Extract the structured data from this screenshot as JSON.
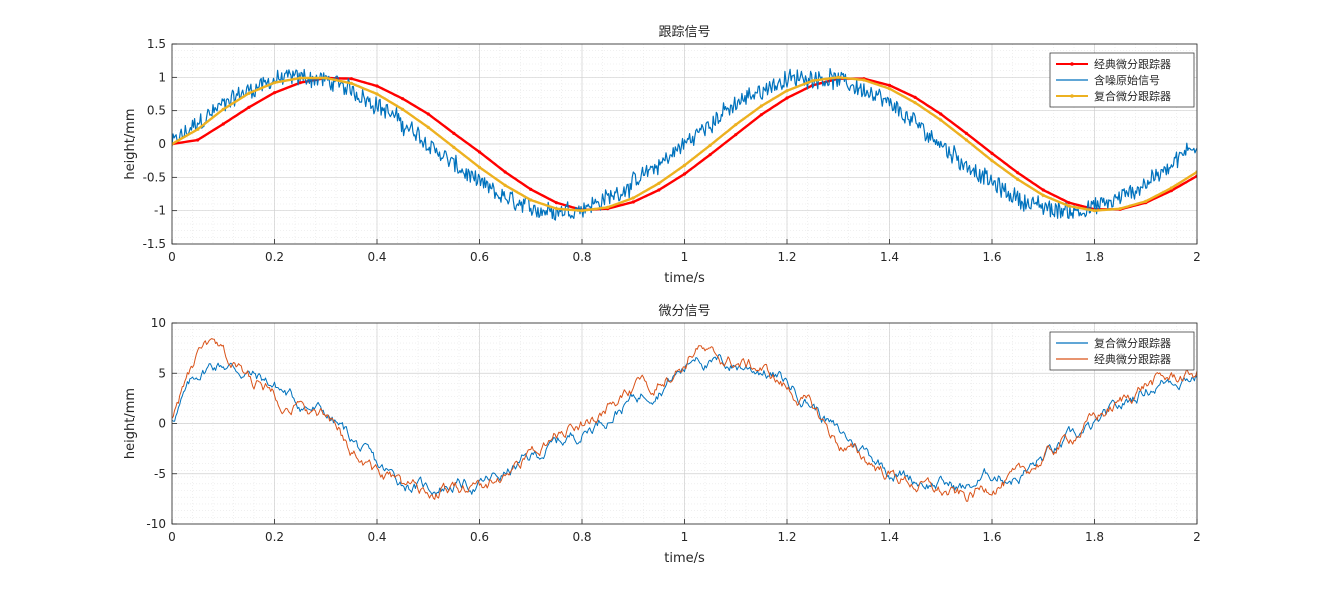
{
  "chart_data": [
    {
      "type": "line",
      "title": "跟踪信号",
      "xlabel": "time/s",
      "ylabel": "height/mm",
      "xlim": [
        0,
        2
      ],
      "ylim": [
        -1.5,
        1.5
      ],
      "xticks": [
        "0",
        "0.2",
        "0.4",
        "0.6",
        "0.8",
        "1",
        "1.2",
        "1.4",
        "1.6",
        "1.8",
        "2"
      ],
      "yticks": [
        "1.5",
        "1",
        "0.5",
        "0",
        "-0.5",
        "-1",
        "-1.5"
      ],
      "grid": "on (major and minor, dotted)",
      "legend_position": "top-right",
      "series": [
        {
          "name": "经典微分跟踪器",
          "color": "#ff0000",
          "marker": "dot",
          "x": [
            0,
            0.05,
            0.1,
            0.15,
            0.2,
            0.25,
            0.3,
            0.35,
            0.4,
            0.45,
            0.5,
            0.55,
            0.6,
            0.65,
            0.7,
            0.75,
            0.8,
            0.85,
            0.9,
            0.95,
            1.0,
            1.05,
            1.1,
            1.15,
            1.2,
            1.25,
            1.3,
            1.35,
            1.4,
            1.45,
            1.5,
            1.55,
            1.6,
            1.65,
            1.7,
            1.75,
            1.8,
            1.85,
            1.9,
            1.95,
            2.0
          ],
          "y": [
            0.0,
            0.06,
            0.3,
            0.55,
            0.77,
            0.92,
            0.99,
            0.98,
            0.87,
            0.68,
            0.45,
            0.16,
            -0.12,
            -0.42,
            -0.68,
            -0.88,
            -0.99,
            -0.97,
            -0.87,
            -0.69,
            -0.45,
            -0.16,
            0.14,
            0.44,
            0.69,
            0.88,
            0.98,
            0.98,
            0.88,
            0.7,
            0.45,
            0.16,
            -0.14,
            -0.43,
            -0.69,
            -0.88,
            -0.98,
            -0.98,
            -0.88,
            -0.7,
            -0.48
          ]
        },
        {
          "name": "含噪原始信号",
          "color": "#0072bd",
          "marker": "none",
          "function": "sin(2*pi*t) + noise",
          "noise_amplitude": 0.1,
          "samples": 1000,
          "x_range": [
            0,
            2
          ]
        },
        {
          "name": "复合微分跟踪器",
          "color": "#edb120",
          "marker": "dot",
          "x": [
            0,
            0.05,
            0.1,
            0.15,
            0.2,
            0.25,
            0.3,
            0.35,
            0.4,
            0.45,
            0.5,
            0.55,
            0.6,
            0.65,
            0.7,
            0.75,
            0.8,
            0.85,
            0.9,
            0.95,
            1.0,
            1.05,
            1.1,
            1.15,
            1.2,
            1.25,
            1.3,
            1.35,
            1.4,
            1.45,
            1.5,
            1.55,
            1.6,
            1.65,
            1.7,
            1.75,
            1.8,
            1.85,
            1.9,
            1.95,
            2.0
          ],
          "y": [
            0.0,
            0.22,
            0.52,
            0.76,
            0.92,
            0.99,
            0.99,
            0.91,
            0.75,
            0.52,
            0.25,
            -0.05,
            -0.35,
            -0.62,
            -0.84,
            -0.97,
            -1.0,
            -0.95,
            -0.81,
            -0.59,
            -0.32,
            -0.02,
            0.29,
            0.57,
            0.8,
            0.95,
            1.0,
            0.96,
            0.83,
            0.62,
            0.36,
            0.06,
            -0.25,
            -0.53,
            -0.77,
            -0.93,
            -1.0,
            -0.97,
            -0.86,
            -0.66,
            -0.42
          ]
        }
      ]
    },
    {
      "type": "line",
      "title": "微分信号",
      "xlabel": "time/s",
      "ylabel": "height/mm",
      "xlim": [
        0,
        2
      ],
      "ylim": [
        -10,
        10
      ],
      "xticks": [
        "0",
        "0.2",
        "0.4",
        "0.6",
        "0.8",
        "1",
        "1.2",
        "1.4",
        "1.6",
        "1.8",
        "2"
      ],
      "yticks": [
        "10",
        "5",
        "0",
        "-5",
        "-10"
      ],
      "grid": "on (major and minor, dotted)",
      "legend_position": "top-right",
      "series": [
        {
          "name": "复合微分跟踪器",
          "color": "#0072bd",
          "x": [
            0,
            0.025,
            0.05,
            0.075,
            0.1,
            0.125,
            0.15,
            0.2,
            0.25,
            0.3,
            0.35,
            0.4,
            0.45,
            0.5,
            0.55,
            0.6,
            0.65,
            0.7,
            0.75,
            0.8,
            0.85,
            0.9,
            0.95,
            1.0,
            1.025,
            1.05,
            1.1,
            1.15,
            1.2,
            1.25,
            1.3,
            1.35,
            1.4,
            1.45,
            1.5,
            1.55,
            1.6,
            1.65,
            1.7,
            1.75,
            1.8,
            1.85,
            1.9,
            1.95,
            2.0
          ],
          "y": [
            0.5,
            2.8,
            4.8,
            5.8,
            6.0,
            5.5,
            5.0,
            3.8,
            2.0,
            1.0,
            -1.5,
            -4.5,
            -5.8,
            -6.5,
            -6.0,
            -6.2,
            -5.0,
            -3.5,
            -2.0,
            -0.8,
            0.8,
            2.5,
            3.8,
            5.5,
            7.2,
            6.0,
            5.8,
            5.5,
            4.0,
            2.0,
            -1.0,
            -2.5,
            -4.5,
            -5.5,
            -6.0,
            -6.5,
            -5.0,
            -5.3,
            -3.5,
            -1.8,
            -0.5,
            1.5,
            3.5,
            4.5,
            5.0
          ]
        },
        {
          "name": "经典微分跟踪器",
          "color": "#d95319",
          "x": [
            0,
            0.025,
            0.05,
            0.075,
            0.1,
            0.125,
            0.15,
            0.2,
            0.25,
            0.3,
            0.35,
            0.4,
            0.45,
            0.5,
            0.55,
            0.6,
            0.65,
            0.7,
            0.75,
            0.8,
            0.85,
            0.9,
            0.95,
            1.0,
            1.025,
            1.05,
            1.1,
            1.15,
            1.2,
            1.25,
            1.3,
            1.35,
            1.4,
            1.45,
            1.5,
            1.55,
            1.6,
            1.65,
            1.7,
            1.75,
            1.8,
            1.85,
            1.9,
            1.95,
            2.0
          ],
          "y": [
            0.8,
            4.0,
            6.5,
            7.5,
            6.5,
            5.5,
            4.5,
            3.0,
            1.5,
            0.5,
            -2.5,
            -5.0,
            -6.5,
            -7.0,
            -6.5,
            -6.5,
            -5.0,
            -3.0,
            -1.5,
            0.2,
            1.5,
            3.0,
            4.5,
            6.0,
            7.8,
            6.5,
            6.0,
            5.5,
            3.5,
            1.5,
            -2.0,
            -3.5,
            -5.0,
            -6.0,
            -6.8,
            -7.5,
            -6.0,
            -5.5,
            -3.5,
            -1.5,
            0.5,
            2.0,
            4.0,
            4.5,
            5.0
          ]
        }
      ]
    }
  ]
}
